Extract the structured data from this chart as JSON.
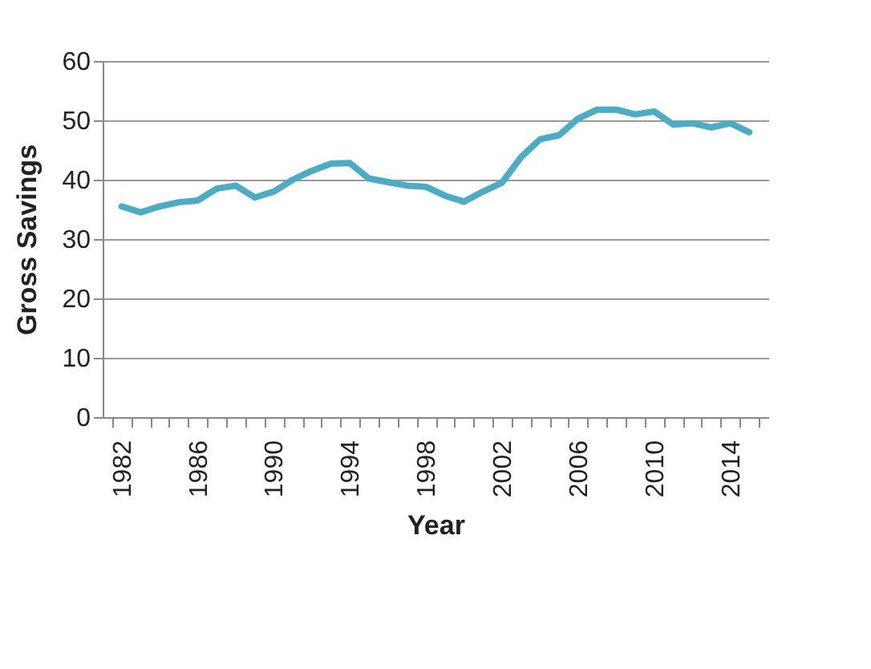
{
  "chart_data": {
    "type": "line",
    "xlabel": "Year",
    "ylabel": "Gross Savings",
    "categories": [
      "1982",
      null,
      null,
      null,
      "1986",
      null,
      null,
      null,
      "1990",
      null,
      null,
      null,
      "1994",
      null,
      null,
      null,
      "1998",
      null,
      null,
      null,
      "2002",
      null,
      null,
      null,
      "2006",
      null,
      null,
      null,
      "2010",
      null,
      null,
      null,
      "2014",
      null
    ],
    "series": [
      {
        "color": "#4bacc6",
        "values": [
          35.5,
          34.5,
          35.5,
          36.2,
          36.5,
          38.5,
          39,
          37,
          38,
          40,
          41.5,
          42.7,
          42.8,
          40.2,
          39.6,
          39,
          38.8,
          37.3,
          36.3,
          38,
          39.5,
          43.8,
          46.8,
          47.5,
          50.3,
          51.8,
          51.8,
          51,
          51.5,
          49.3,
          49.5,
          48.8,
          49.5,
          48
        ]
      }
    ],
    "ylim": [
      0,
      60
    ],
    "yticks": [
      0,
      10,
      20,
      30,
      40,
      50,
      60
    ],
    "grid": "y",
    "legend": false
  }
}
